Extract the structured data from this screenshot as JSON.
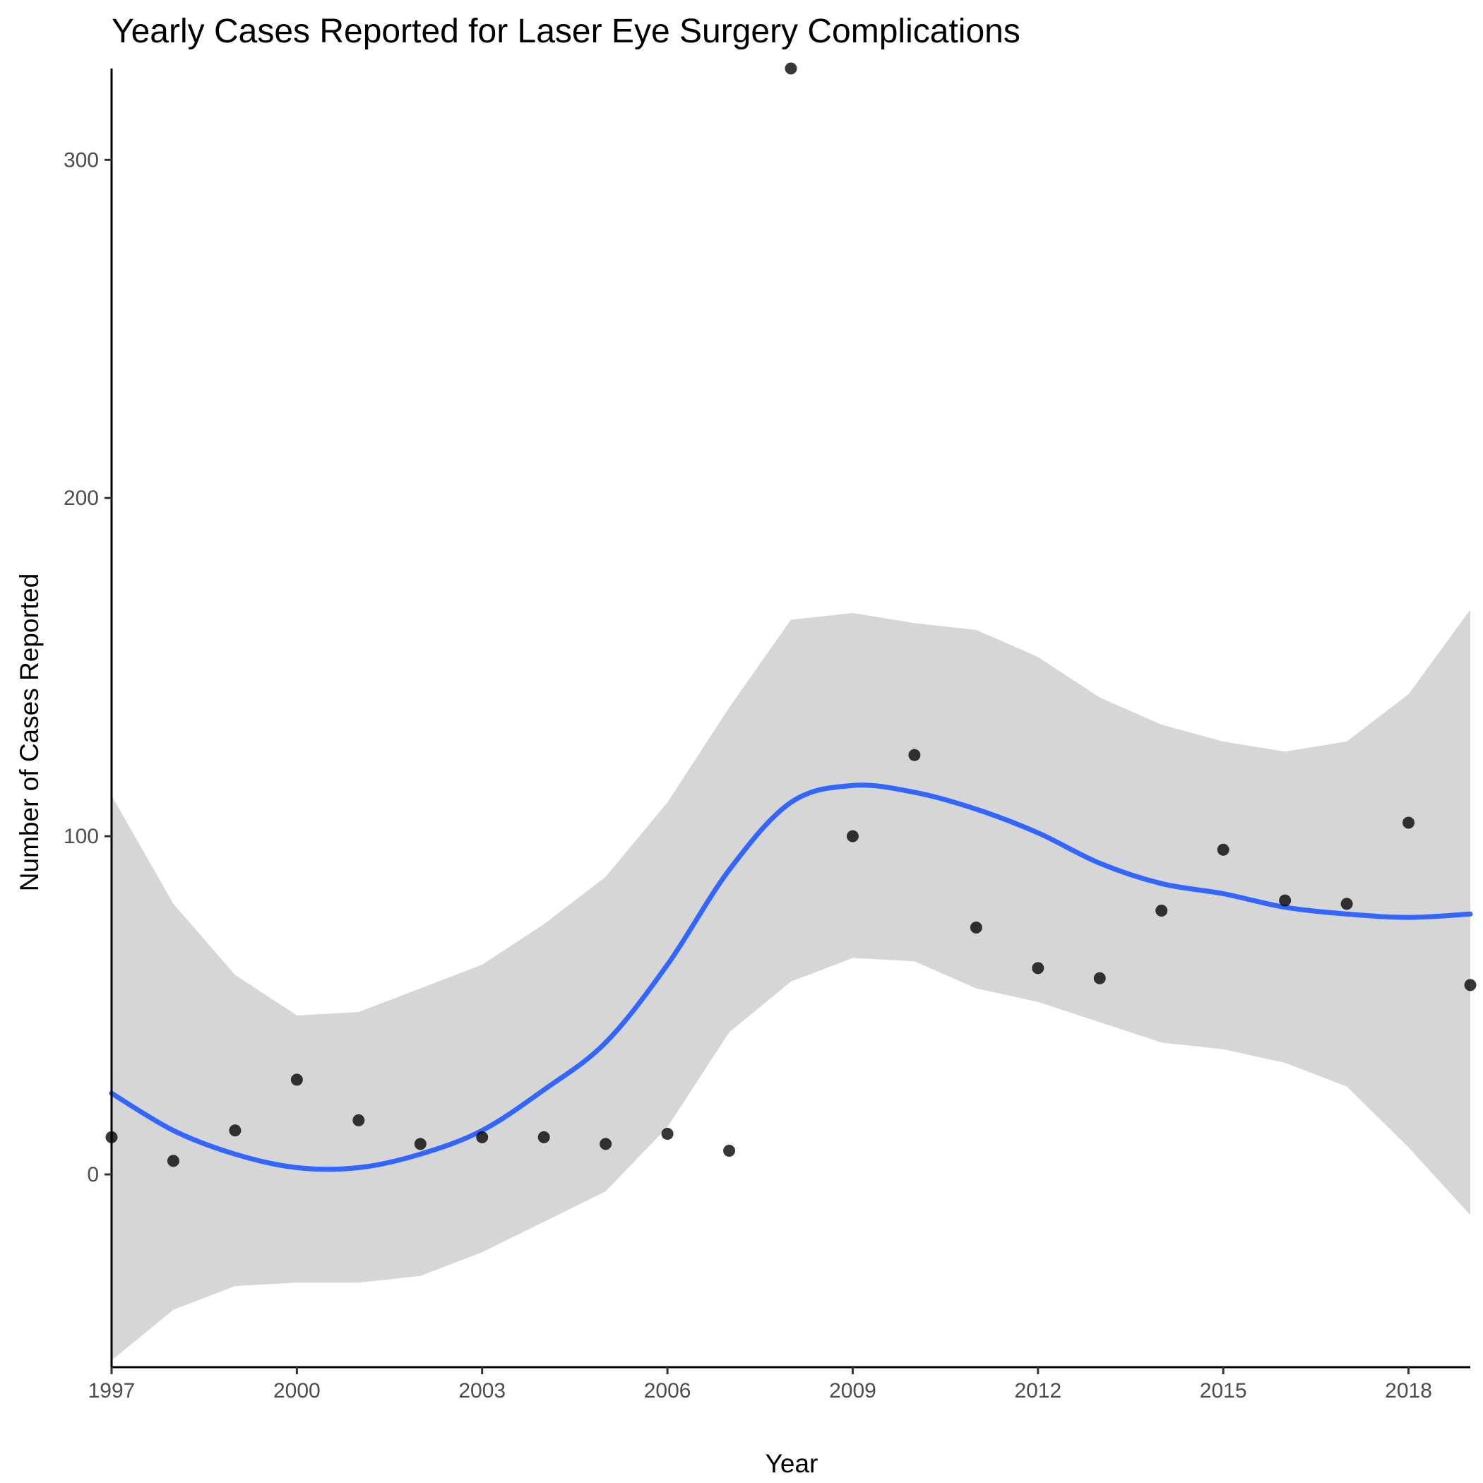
{
  "chart_data": {
    "type": "scatter",
    "title": "Yearly Cases Reported for Laser Eye Surgery Complications",
    "xlabel": "Year",
    "ylabel": "Number of Cases Reported",
    "xlim": [
      1997,
      2019
    ],
    "ylim": [
      -57,
      327
    ],
    "x_ticks": [
      1997,
      2000,
      2003,
      2006,
      2009,
      2012,
      2015,
      2018
    ],
    "y_ticks": [
      0,
      100,
      200,
      300
    ],
    "grid": false,
    "legend": "none",
    "points": {
      "x": [
        1997,
        1998,
        1999,
        2000,
        2001,
        2002,
        2003,
        2004,
        2005,
        2006,
        2007,
        2008,
        2009,
        2010,
        2011,
        2012,
        2013,
        2014,
        2015,
        2016,
        2017,
        2018,
        2019
      ],
      "y": [
        11,
        4,
        13,
        28,
        16,
        9,
        11,
        11,
        9,
        12,
        7,
        327,
        100,
        124,
        73,
        61,
        58,
        78,
        96,
        81,
        80,
        104,
        56
      ]
    },
    "smooth": {
      "x": [
        1997,
        1998,
        1999,
        2000,
        2001,
        2002,
        2003,
        2004,
        2005,
        2006,
        2007,
        2008,
        2009,
        2010,
        2011,
        2012,
        2013,
        2014,
        2015,
        2016,
        2017,
        2018,
        2019
      ],
      "y": [
        24,
        13,
        6,
        2,
        2,
        6,
        13,
        25,
        39,
        62,
        90,
        110,
        115,
        113,
        108,
        101,
        92,
        86,
        83,
        79,
        77,
        76,
        77
      ],
      "lower": [
        -55,
        -40,
        -33,
        -32,
        -32,
        -30,
        -23,
        -14,
        -5,
        14,
        42,
        57,
        64,
        63,
        55,
        51,
        45,
        39,
        37,
        33,
        26,
        8,
        -12
      ],
      "upper": [
        112,
        80,
        59,
        47,
        48,
        55,
        62,
        74,
        88,
        110,
        138,
        164,
        166,
        163,
        161,
        153,
        141,
        133,
        128,
        125,
        128,
        142,
        167
      ]
    },
    "colors": {
      "line": "#3366ff",
      "ribbon": "#d6d6d6",
      "point": "#000000",
      "axis": "#000000"
    }
  }
}
